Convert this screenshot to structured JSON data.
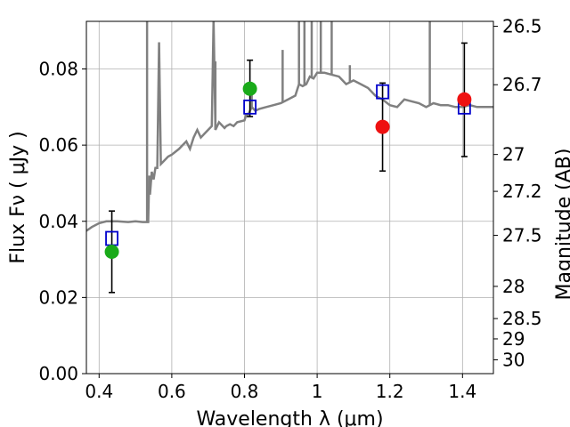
{
  "chart_data": {
    "type": "scatter",
    "title": "",
    "xlabel": "Wavelength  λ (μm)",
    "ylabel": "Flux  Fν  ( μJy )",
    "ylabel_right": "Magnitude (AB)",
    "xlim": [
      0.365,
      1.485
    ],
    "ylim": [
      0.0,
      0.0925
    ],
    "grid": true,
    "x_ticks": [
      0.4,
      0.6,
      0.8,
      1.0,
      1.2,
      1.4
    ],
    "x_tick_labels": [
      "0.4",
      "0.6",
      "0.8",
      "1",
      "1.2",
      "1.4"
    ],
    "y_ticks": [
      0.0,
      0.02,
      0.04,
      0.06,
      0.08
    ],
    "y_tick_labels": [
      "0.00",
      "0.02",
      "0.04",
      "0.06",
      "0.08"
    ],
    "right_ticks": [
      26.5,
      26.7,
      27.0,
      27.2,
      27.5,
      28.0,
      28.5,
      29.0,
      30.0
    ],
    "right_tick_labels": [
      "26.5",
      "26.7",
      "27",
      "27.2",
      "27.5",
      "28",
      "28.5",
      "29",
      "30"
    ],
    "series": [
      {
        "kind": "line",
        "color": "#808080",
        "points": [
          [
            0.365,
            0.0375
          ],
          [
            0.38,
            0.0385
          ],
          [
            0.4,
            0.0395
          ],
          [
            0.42,
            0.04
          ],
          [
            0.45,
            0.04
          ],
          [
            0.48,
            0.0398
          ],
          [
            0.5,
            0.04
          ],
          [
            0.52,
            0.0398
          ],
          [
            0.535,
            0.0398
          ],
          [
            0.538,
            0.052
          ],
          [
            0.54,
            0.047
          ],
          [
            0.545,
            0.053
          ],
          [
            0.55,
            0.051
          ],
          [
            0.555,
            0.054
          ],
          [
            0.56,
            0.054
          ],
          [
            0.565,
            0.087
          ],
          [
            0.57,
            0.055
          ],
          [
            0.58,
            0.056
          ],
          [
            0.59,
            0.057
          ],
          [
            0.6,
            0.0575
          ],
          [
            0.62,
            0.059
          ],
          [
            0.63,
            0.06
          ],
          [
            0.64,
            0.061
          ],
          [
            0.65,
            0.059
          ],
          [
            0.66,
            0.062
          ],
          [
            0.67,
            0.064
          ],
          [
            0.68,
            0.062
          ],
          [
            0.69,
            0.063
          ],
          [
            0.7,
            0.064
          ],
          [
            0.71,
            0.065
          ],
          [
            0.715,
            0.093
          ],
          [
            0.72,
            0.064
          ],
          [
            0.73,
            0.066
          ],
          [
            0.745,
            0.0645
          ],
          [
            0.75,
            0.065
          ],
          [
            0.76,
            0.0655
          ],
          [
            0.77,
            0.065
          ],
          [
            0.78,
            0.066
          ],
          [
            0.8,
            0.0665
          ],
          [
            0.805,
            0.068
          ],
          [
            0.81,
            0.068
          ],
          [
            0.82,
            0.07
          ],
          [
            0.83,
            0.069
          ],
          [
            0.84,
            0.0695
          ],
          [
            0.86,
            0.07
          ],
          [
            0.88,
            0.0705
          ],
          [
            0.9,
            0.071
          ],
          [
            0.92,
            0.072
          ],
          [
            0.94,
            0.073
          ],
          [
            0.95,
            0.076
          ],
          [
            0.96,
            0.0755
          ],
          [
            0.97,
            0.076
          ],
          [
            0.98,
            0.078
          ],
          [
            0.99,
            0.0775
          ],
          [
            1.0,
            0.079
          ],
          [
            1.02,
            0.079
          ],
          [
            1.04,
            0.0785
          ],
          [
            1.06,
            0.078
          ],
          [
            1.08,
            0.076
          ],
          [
            1.1,
            0.077
          ],
          [
            1.12,
            0.076
          ],
          [
            1.14,
            0.075
          ],
          [
            1.16,
            0.073
          ],
          [
            1.18,
            0.072
          ],
          [
            1.2,
            0.0705
          ],
          [
            1.22,
            0.07
          ],
          [
            1.24,
            0.072
          ],
          [
            1.26,
            0.0715
          ],
          [
            1.28,
            0.071
          ],
          [
            1.3,
            0.07
          ],
          [
            1.32,
            0.071
          ],
          [
            1.34,
            0.0705
          ],
          [
            1.36,
            0.0705
          ],
          [
            1.38,
            0.07
          ],
          [
            1.4,
            0.07
          ],
          [
            1.42,
            0.0705
          ],
          [
            1.44,
            0.07
          ],
          [
            1.46,
            0.07
          ],
          [
            1.485,
            0.07
          ]
        ],
        "spikes": [
          {
            "x": 0.532,
            "y": 0.093
          },
          {
            "x": 0.565,
            "y": 0.087
          },
          {
            "x": 0.715,
            "y": 0.093
          },
          {
            "x": 0.72,
            "y": 0.082
          },
          {
            "x": 0.82,
            "y": 0.076
          },
          {
            "x": 0.905,
            "y": 0.085
          },
          {
            "x": 0.95,
            "y": 0.093
          },
          {
            "x": 0.965,
            "y": 0.093
          },
          {
            "x": 0.985,
            "y": 0.093
          },
          {
            "x": 1.01,
            "y": 0.093
          },
          {
            "x": 1.04,
            "y": 0.093
          },
          {
            "x": 1.09,
            "y": 0.081
          },
          {
            "x": 1.31,
            "y": 0.093
          }
        ]
      },
      {
        "kind": "open-square",
        "color": "#0000cc",
        "points": [
          [
            0.435,
            0.0355
          ],
          [
            0.815,
            0.07
          ],
          [
            1.18,
            0.074
          ],
          [
            1.405,
            0.07
          ]
        ]
      },
      {
        "kind": "circle",
        "color": "#1aaa1a",
        "points": [
          [
            0.435,
            0.032
          ],
          [
            0.815,
            0.0748
          ]
        ],
        "err_low": [
          0.0213,
          0.0675
        ],
        "err_high": [
          0.0427,
          0.0823
        ]
      },
      {
        "kind": "circle",
        "color": "#ee1111",
        "points": [
          [
            1.18,
            0.0648
          ],
          [
            1.405,
            0.072
          ]
        ],
        "err_low": [
          0.0532,
          0.057
        ],
        "err_high": [
          0.0763,
          0.0868
        ]
      }
    ]
  }
}
